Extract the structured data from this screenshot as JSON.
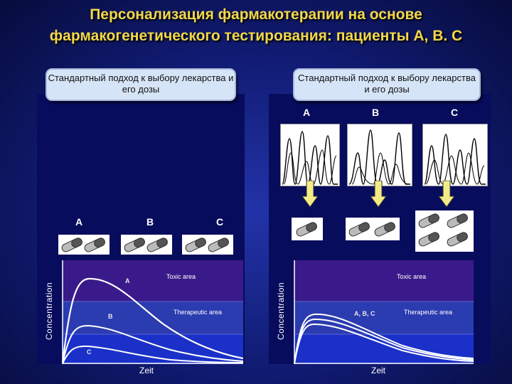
{
  "title": {
    "line1": "Персонализация фармакотерапии на основе",
    "line2": "фармакогенетического  тестирования: пациенты А, В. С"
  },
  "left_panel": {
    "callout": "Стандартный подход к выбору лекарства и его дозы",
    "patients": [
      "A",
      "B",
      "C"
    ],
    "chart": {
      "ylabel": "Concentration",
      "xlabel": "Zeit",
      "toxic_label": "Toxic area",
      "therapeutic_label": "Therapeutic area",
      "curve_labels": [
        "A",
        "B",
        "C"
      ]
    }
  },
  "right_panel": {
    "callout": "Стандартный подход к выбору лекарства и его дозы",
    "patients": [
      "A",
      "B",
      "C"
    ],
    "chart": {
      "ylabel": "Concentration",
      "xlabel": "Zeit",
      "toxic_label": "Toxic area",
      "therapeutic_label": "Therapeutic area",
      "curve_label": "A, B, C"
    }
  },
  "colors": {
    "title": "#f2d84a",
    "toxic_zone": "#3a1a8a",
    "therapeutic_zone": "#2b3bb0",
    "low_zone": "#1a30c8",
    "arrow": "#f3ec86"
  }
}
